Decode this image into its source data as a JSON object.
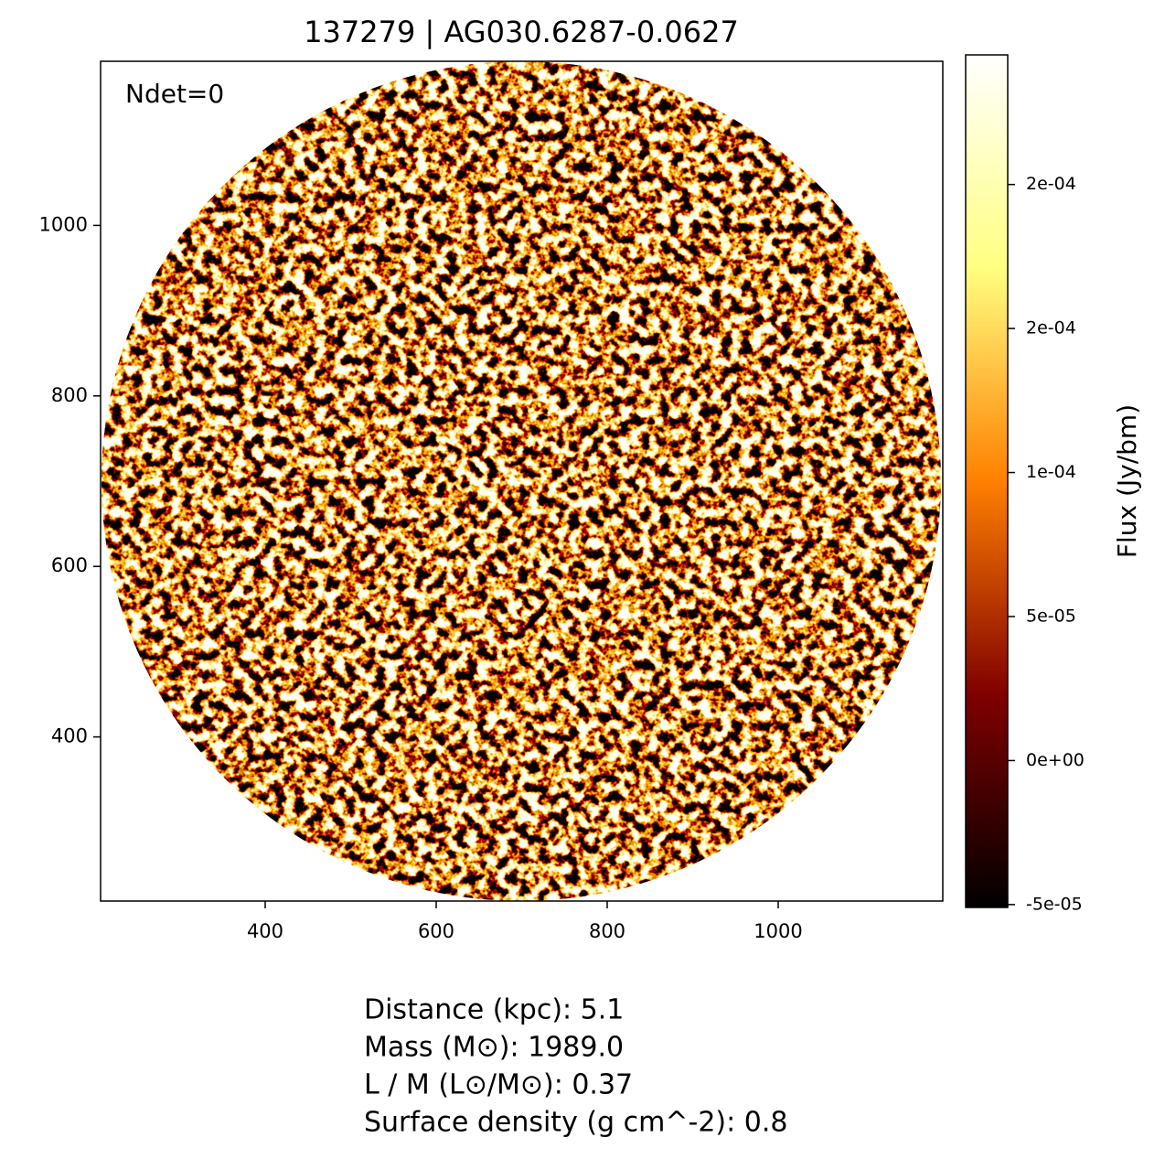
{
  "chart_data": {
    "type": "image",
    "title": "137279 | AG030.6287-0.0627",
    "annotation": "Ndet=0",
    "xlim": [
      207.5,
      1192.5
    ],
    "ylim": [
      207.5,
      1192.5
    ],
    "xticks": [
      400,
      600,
      800,
      1000
    ],
    "yticks": [
      400,
      600,
      800,
      1000
    ],
    "colormap": "afmhot",
    "colorbar": {
      "label": "Flux (Jy/bm)",
      "lim": [
        -5.1e-05,
        0.000245
      ],
      "ticks": [
        {
          "value": -5e-05,
          "label": "-5e-05"
        },
        {
          "value": 0,
          "label": "0e+00"
        },
        {
          "value": 5e-05,
          "label": "5e-05"
        },
        {
          "value": 0.0001,
          "label": "1e-04"
        },
        {
          "value": 0.00015,
          "label": "2e-04"
        },
        {
          "value": 0.0002,
          "label": "2e-04"
        }
      ]
    },
    "notes": [
      "Distance (kpc): 5.1",
      "Mass (M⊙): 1989.0",
      "L / M (L⊙/M⊙): 0.37",
      "Surface density (g cm^-2): 0.8"
    ]
  }
}
